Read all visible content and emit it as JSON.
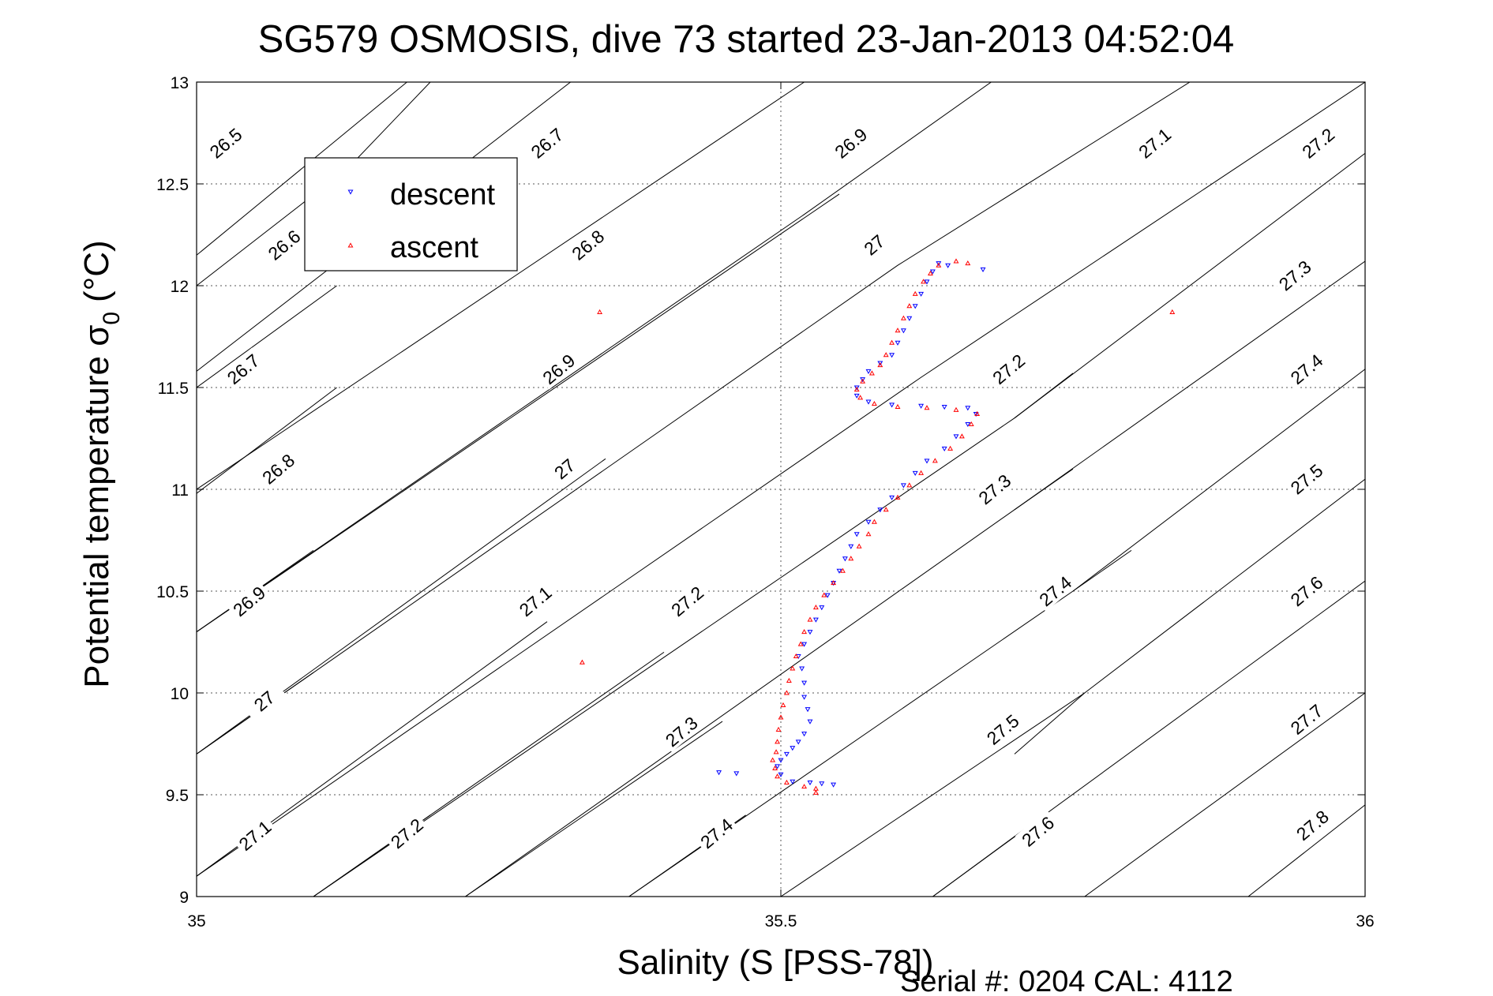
{
  "chart_data": {
    "type": "scatter",
    "title": "SG579 OSMOSIS, dive 73 started 23-Jan-2013 04:52:04",
    "xlabel": "Salinity (S [PSS-78])",
    "ylabel_main": "Potential temperature σ",
    "ylabel_sub": "0",
    "ylabel_unit": "(°C)",
    "xlim": [
      35,
      36
    ],
    "ylim": [
      9,
      13
    ],
    "grid": true,
    "x_ticks": [
      {
        "v": 35,
        "label": "35"
      },
      {
        "v": 35.5,
        "label": "35.5"
      },
      {
        "v": 36,
        "label": "36"
      }
    ],
    "y_ticks": [
      {
        "v": 9,
        "label": "9"
      },
      {
        "v": 9.5,
        "label": "9.5"
      },
      {
        "v": 10,
        "label": "10"
      },
      {
        "v": 10.5,
        "label": "10.5"
      },
      {
        "v": 11,
        "label": "11"
      },
      {
        "v": 11.5,
        "label": "11.5"
      },
      {
        "v": 12,
        "label": "12"
      },
      {
        "v": 12.5,
        "label": "12.5"
      },
      {
        "v": 13,
        "label": "13"
      }
    ],
    "legend_position": "top-left",
    "series": [
      {
        "name": "descent",
        "color": "#0000ff",
        "marker": "down-triangle",
        "points": [
          [
            35.545,
            9.55
          ],
          [
            35.535,
            9.555
          ],
          [
            35.525,
            9.56
          ],
          [
            35.51,
            9.565
          ],
          [
            35.5,
            9.6
          ],
          [
            35.497,
            9.64
          ],
          [
            35.5,
            9.67
          ],
          [
            35.505,
            9.7
          ],
          [
            35.51,
            9.73
          ],
          [
            35.515,
            9.76
          ],
          [
            35.52,
            9.8
          ],
          [
            35.525,
            9.86
          ],
          [
            35.523,
            9.92
          ],
          [
            35.52,
            9.98
          ],
          [
            35.52,
            10.05
          ],
          [
            35.518,
            10.12
          ],
          [
            35.515,
            10.18
          ],
          [
            35.52,
            10.24
          ],
          [
            35.525,
            10.3
          ],
          [
            35.53,
            10.36
          ],
          [
            35.535,
            10.42
          ],
          [
            35.54,
            10.48
          ],
          [
            35.545,
            10.54
          ],
          [
            35.55,
            10.6
          ],
          [
            35.555,
            10.66
          ],
          [
            35.56,
            10.72
          ],
          [
            35.565,
            10.78
          ],
          [
            35.575,
            10.84
          ],
          [
            35.585,
            10.9
          ],
          [
            35.595,
            10.96
          ],
          [
            35.605,
            11.02
          ],
          [
            35.615,
            11.08
          ],
          [
            35.625,
            11.14
          ],
          [
            35.64,
            11.2
          ],
          [
            35.65,
            11.26
          ],
          [
            35.66,
            11.32
          ],
          [
            35.667,
            11.37
          ],
          [
            35.66,
            11.4
          ],
          [
            35.64,
            11.405
          ],
          [
            35.62,
            11.41
          ],
          [
            35.595,
            11.415
          ],
          [
            35.575,
            11.43
          ],
          [
            35.565,
            11.46
          ],
          [
            35.565,
            11.5
          ],
          [
            35.57,
            11.54
          ],
          [
            35.575,
            11.58
          ],
          [
            35.585,
            11.62
          ],
          [
            35.595,
            11.66
          ],
          [
            35.6,
            11.72
          ],
          [
            35.605,
            11.78
          ],
          [
            35.61,
            11.84
          ],
          [
            35.615,
            11.9
          ],
          [
            35.62,
            11.96
          ],
          [
            35.625,
            12.02
          ],
          [
            35.63,
            12.07
          ],
          [
            35.635,
            12.11
          ],
          [
            35.643,
            12.1
          ],
          [
            35.673,
            12.08
          ],
          [
            35.447,
            9.61
          ],
          [
            35.462,
            9.605
          ]
        ]
      },
      {
        "name": "ascent",
        "color": "#ff0000",
        "marker": "up-triangle",
        "points": [
          [
            35.53,
            9.53
          ],
          [
            35.52,
            9.54
          ],
          [
            35.505,
            9.56
          ],
          [
            35.497,
            9.59
          ],
          [
            35.495,
            9.63
          ],
          [
            35.493,
            9.67
          ],
          [
            35.496,
            9.71
          ],
          [
            35.497,
            9.76
          ],
          [
            35.498,
            9.82
          ],
          [
            35.5,
            9.88
          ],
          [
            35.502,
            9.94
          ],
          [
            35.505,
            10.0
          ],
          [
            35.507,
            10.06
          ],
          [
            35.51,
            10.12
          ],
          [
            35.513,
            10.18
          ],
          [
            35.517,
            10.24
          ],
          [
            35.52,
            10.3
          ],
          [
            35.525,
            10.36
          ],
          [
            35.53,
            10.42
          ],
          [
            35.537,
            10.48
          ],
          [
            35.545,
            10.54
          ],
          [
            35.553,
            10.6
          ],
          [
            35.56,
            10.66
          ],
          [
            35.567,
            10.72
          ],
          [
            35.575,
            10.78
          ],
          [
            35.58,
            10.84
          ],
          [
            35.59,
            10.9
          ],
          [
            35.6,
            10.96
          ],
          [
            35.61,
            11.02
          ],
          [
            35.62,
            11.08
          ],
          [
            35.632,
            11.14
          ],
          [
            35.645,
            11.2
          ],
          [
            35.655,
            11.26
          ],
          [
            35.663,
            11.32
          ],
          [
            35.668,
            11.37
          ],
          [
            35.65,
            11.39
          ],
          [
            35.625,
            11.4
          ],
          [
            35.6,
            11.405
          ],
          [
            35.58,
            11.42
          ],
          [
            35.568,
            11.45
          ],
          [
            35.565,
            11.49
          ],
          [
            35.57,
            11.53
          ],
          [
            35.578,
            11.57
          ],
          [
            35.585,
            11.61
          ],
          [
            35.59,
            11.66
          ],
          [
            35.595,
            11.72
          ],
          [
            35.6,
            11.78
          ],
          [
            35.605,
            11.84
          ],
          [
            35.61,
            11.9
          ],
          [
            35.615,
            11.96
          ],
          [
            35.622,
            12.02
          ],
          [
            35.628,
            12.06
          ],
          [
            35.635,
            12.1
          ],
          [
            35.65,
            12.12
          ],
          [
            35.66,
            12.11
          ],
          [
            35.33,
            10.15
          ],
          [
            35.345,
            11.87
          ],
          [
            35.835,
            11.87
          ],
          [
            35.53,
            9.51
          ]
        ]
      }
    ],
    "contour_lines": [
      {
        "label": "26.5",
        "pts": [
          [
            35.0,
            12.15
          ],
          [
            35.18,
            13.0
          ]
        ],
        "lx": 35.025,
        "ly": 12.7
      },
      {
        "label": "26.6",
        "pts": [
          [
            35.0,
            12.0
          ],
          [
            35.13,
            12.58
          ],
          [
            35.2,
            13.0
          ]
        ],
        "lx": 35.075,
        "ly": 12.2
      },
      {
        "label": "26.7",
        "pts": [
          [
            35.0,
            11.58
          ],
          [
            35.32,
            13.0
          ]
        ],
        "lx": 35.3,
        "ly": 12.7
      },
      {
        "label": "26.7",
        "pts": [
          [
            35.0,
            11.5
          ],
          [
            35.12,
            12.0
          ]
        ],
        "lx": 35.04,
        "ly": 11.59
      },
      {
        "label": "26.8",
        "pts": [
          [
            35.0,
            11.0
          ],
          [
            35.52,
            13.0
          ]
        ],
        "lx": 35.335,
        "ly": 12.2
      },
      {
        "label": "26.8",
        "pts": [
          [
            35.0,
            10.98
          ],
          [
            35.12,
            11.5
          ]
        ],
        "lx": 35.07,
        "ly": 11.1
      },
      {
        "label": "26.9",
        "pts": [
          [
            35.0,
            10.3
          ],
          [
            35.52,
            12.35
          ],
          [
            35.68,
            13.0
          ]
        ],
        "lx": 35.56,
        "ly": 12.7
      },
      {
        "label": "26.9",
        "pts": [
          [
            35.0,
            10.3
          ],
          [
            35.55,
            12.45
          ]
        ],
        "lx": 35.31,
        "ly": 11.59
      },
      {
        "label": "26.9",
        "pts": [
          [
            35.0,
            10.3
          ],
          [
            35.1,
            10.7
          ]
        ],
        "lx": 35.045,
        "ly": 10.45
      },
      {
        "label": "27",
        "pts": [
          [
            35.0,
            9.7
          ],
          [
            35.6,
            12.1
          ],
          [
            35.85,
            13.0
          ]
        ],
        "lx": 35.58,
        "ly": 12.2
      },
      {
        "label": "27",
        "pts": [
          [
            35.0,
            9.7
          ],
          [
            35.35,
            11.15
          ]
        ],
        "lx": 35.315,
        "ly": 11.1
      },
      {
        "label": "27",
        "pts": [
          [
            35.0,
            9.7
          ],
          [
            35.1,
            10.1
          ]
        ],
        "lx": 35.058,
        "ly": 9.96
      },
      {
        "label": "27.1",
        "pts": [
          [
            35.0,
            9.1
          ],
          [
            35.62,
            11.55
          ],
          [
            36.0,
            13.0
          ]
        ],
        "lx": 35.82,
        "ly": 12.7
      },
      {
        "label": "27.1",
        "pts": [
          [
            35.0,
            9.1
          ],
          [
            35.3,
            10.35
          ]
        ],
        "lx": 35.29,
        "ly": 10.45
      },
      {
        "label": "27.1",
        "pts": [
          [
            35.0,
            9.1
          ],
          [
            35.06,
            9.35
          ]
        ],
        "lx": 35.05,
        "ly": 9.3
      },
      {
        "label": "27.2",
        "pts": [
          [
            35.1,
            9.0
          ],
          [
            35.7,
            11.35
          ],
          [
            36.0,
            12.65
          ]
        ],
        "lx": 35.96,
        "ly": 12.7
      },
      {
        "label": "27.2",
        "pts": [
          [
            35.1,
            9.0
          ],
          [
            35.4,
            10.2
          ]
        ],
        "lx": 35.42,
        "ly": 10.45
      },
      {
        "label": "27.2",
        "pts": [
          [
            35.1,
            9.0
          ],
          [
            35.2,
            9.4
          ]
        ],
        "lx": 35.18,
        "ly": 9.31
      },
      {
        "label": "27.2",
        "pts": [
          [
            35.7,
            11.35
          ],
          [
            35.75,
            11.57
          ]
        ],
        "lx": 35.695,
        "ly": 11.59
      },
      {
        "label": "27.3",
        "pts": [
          [
            35.23,
            9.0
          ],
          [
            35.7,
            10.9
          ],
          [
            36.0,
            12.12
          ]
        ],
        "lx": 35.94,
        "ly": 12.05
      },
      {
        "label": "27.3",
        "pts": [
          [
            35.23,
            9.0
          ],
          [
            35.45,
            9.86
          ]
        ],
        "lx": 35.415,
        "ly": 9.81
      },
      {
        "label": "27.3",
        "pts": [
          [
            35.7,
            10.9
          ],
          [
            35.75,
            11.1
          ]
        ],
        "lx": 35.683,
        "ly": 11.0
      },
      {
        "label": "27.4",
        "pts": [
          [
            35.37,
            9.0
          ],
          [
            35.75,
            10.5
          ],
          [
            36.0,
            11.59
          ]
        ],
        "lx": 35.95,
        "ly": 11.59
      },
      {
        "label": "27.4",
        "pts": [
          [
            35.37,
            9.0
          ],
          [
            35.47,
            9.4
          ]
        ],
        "lx": 35.445,
        "ly": 9.31
      },
      {
        "label": "27.4",
        "pts": [
          [
            35.75,
            10.5
          ],
          [
            35.8,
            10.7
          ]
        ],
        "lx": 35.735,
        "ly": 10.5
      },
      {
        "label": "27.5",
        "pts": [
          [
            35.5,
            9.0
          ],
          [
            35.76,
            10.0
          ],
          [
            36.0,
            11.05
          ]
        ],
        "lx": 35.95,
        "ly": 11.05
      },
      {
        "label": "27.5",
        "pts": [
          [
            35.7,
            9.7
          ],
          [
            35.76,
            10.0
          ]
        ],
        "lx": 35.69,
        "ly": 9.82
      },
      {
        "label": "27.6",
        "pts": [
          [
            35.63,
            9.0
          ],
          [
            36.0,
            10.55
          ]
        ],
        "lx": 35.95,
        "ly": 10.5
      },
      {
        "label": "27.6",
        "pts": [
          [
            35.63,
            9.0
          ],
          [
            35.72,
            9.38
          ]
        ],
        "lx": 35.72,
        "ly": 9.32
      },
      {
        "label": "27.7",
        "pts": [
          [
            35.76,
            9.0
          ],
          [
            36.0,
            10.0
          ]
        ],
        "lx": 35.95,
        "ly": 9.87
      },
      {
        "label": "27.8",
        "pts": [
          [
            35.9,
            9.0
          ],
          [
            36.0,
            9.45
          ]
        ],
        "lx": 35.955,
        "ly": 9.35
      }
    ],
    "serial_text": "Serial #: 0204  CAL: 4112"
  }
}
